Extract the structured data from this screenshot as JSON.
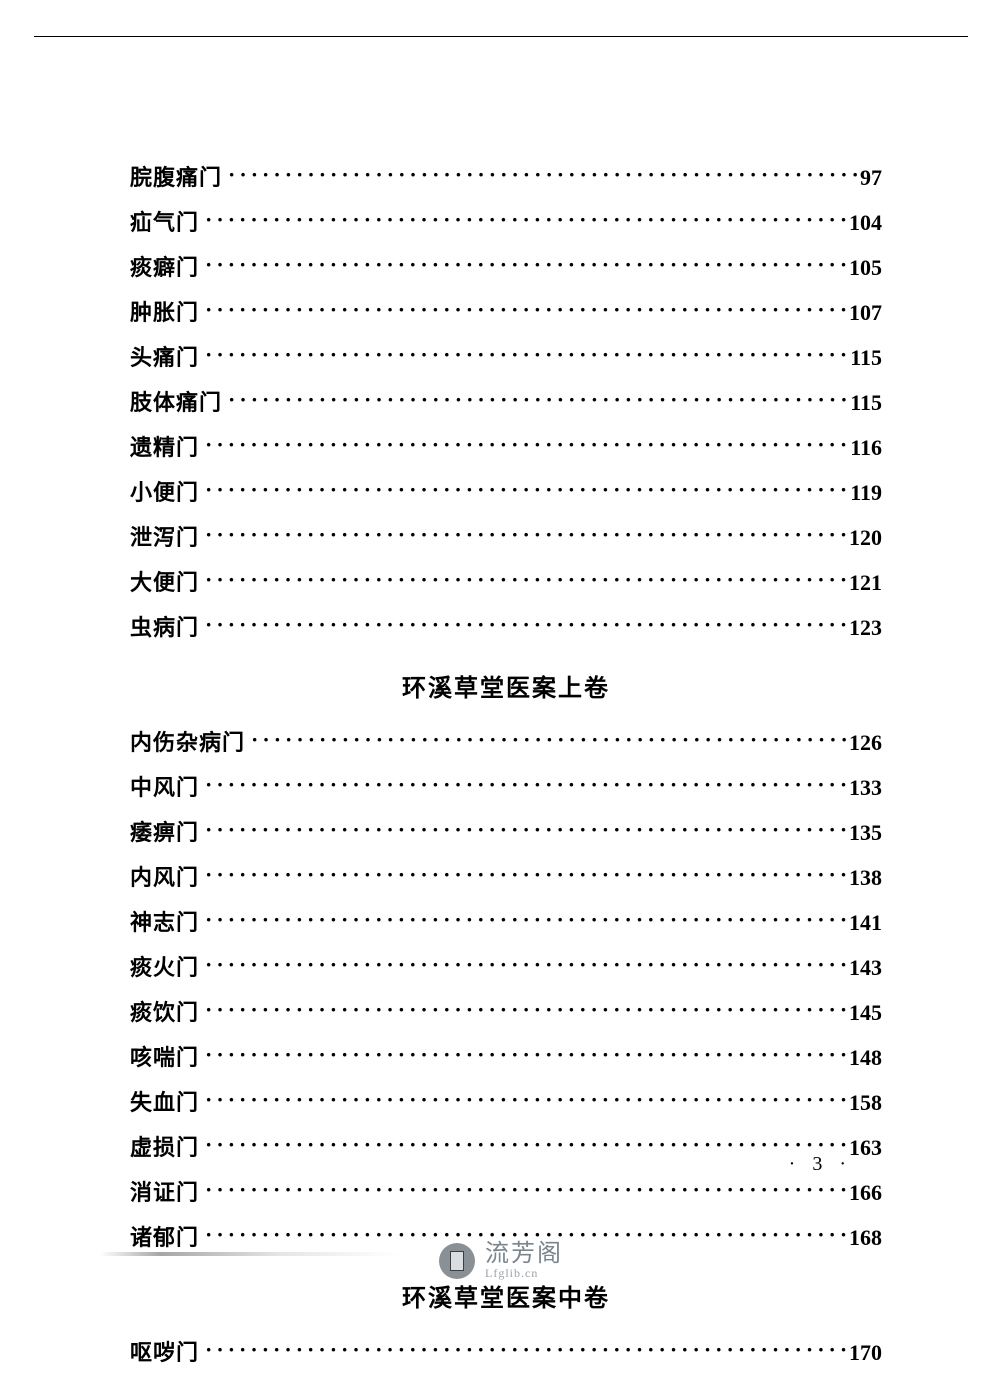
{
  "page_number_display": "· 3 ·",
  "leader_char": "·",
  "typography": {
    "body_fontsize_pt": 16,
    "heading_fontsize_pt": 18,
    "font_weight_body": 600,
    "font_weight_heading": 700,
    "font_family": "SimSun / 宋体"
  },
  "colors": {
    "text": "#000000",
    "background": "#ffffff",
    "rule": "#000000",
    "watermark_text": "#7a858d",
    "watermark_sub": "#9aa3aa",
    "watermark_icon_bg": "#8a9196"
  },
  "sections": [
    {
      "heading": null,
      "entries": [
        {
          "label": "脘腹痛门",
          "page": "97"
        },
        {
          "label": "疝气门",
          "page": "104"
        },
        {
          "label": "痰癖门",
          "page": "105"
        },
        {
          "label": "肿胀门",
          "page": "107"
        },
        {
          "label": "头痛门",
          "page": "115"
        },
        {
          "label": "肢体痛门",
          "page": "115"
        },
        {
          "label": "遗精门",
          "page": "116"
        },
        {
          "label": "小便门",
          "page": "119"
        },
        {
          "label": "泄泻门",
          "page": "120"
        },
        {
          "label": "大便门",
          "page": "121"
        },
        {
          "label": "虫病门",
          "page": "123"
        }
      ]
    },
    {
      "heading": "环溪草堂医案上卷",
      "entries": [
        {
          "label": "内伤杂病门",
          "page": "126"
        },
        {
          "label": "中风门",
          "page": "133"
        },
        {
          "label": "痿痹门",
          "page": "135"
        },
        {
          "label": "内风门",
          "page": "138"
        },
        {
          "label": "神志门",
          "page": "141"
        },
        {
          "label": "痰火门",
          "page": "143"
        },
        {
          "label": "痰饮门",
          "page": "145"
        },
        {
          "label": "咳喘门",
          "page": "148"
        },
        {
          "label": "失血门",
          "page": "158"
        },
        {
          "label": "虚损门",
          "page": "163"
        },
        {
          "label": "消证门",
          "page": "166"
        },
        {
          "label": "诸郁门",
          "page": "168"
        }
      ]
    },
    {
      "heading": "环溪草堂医案中卷",
      "entries": [
        {
          "label": "呕哕门",
          "page": "170"
        }
      ]
    }
  ],
  "watermark": {
    "cn": "流芳阁",
    "en": "Lfglib.cn"
  }
}
